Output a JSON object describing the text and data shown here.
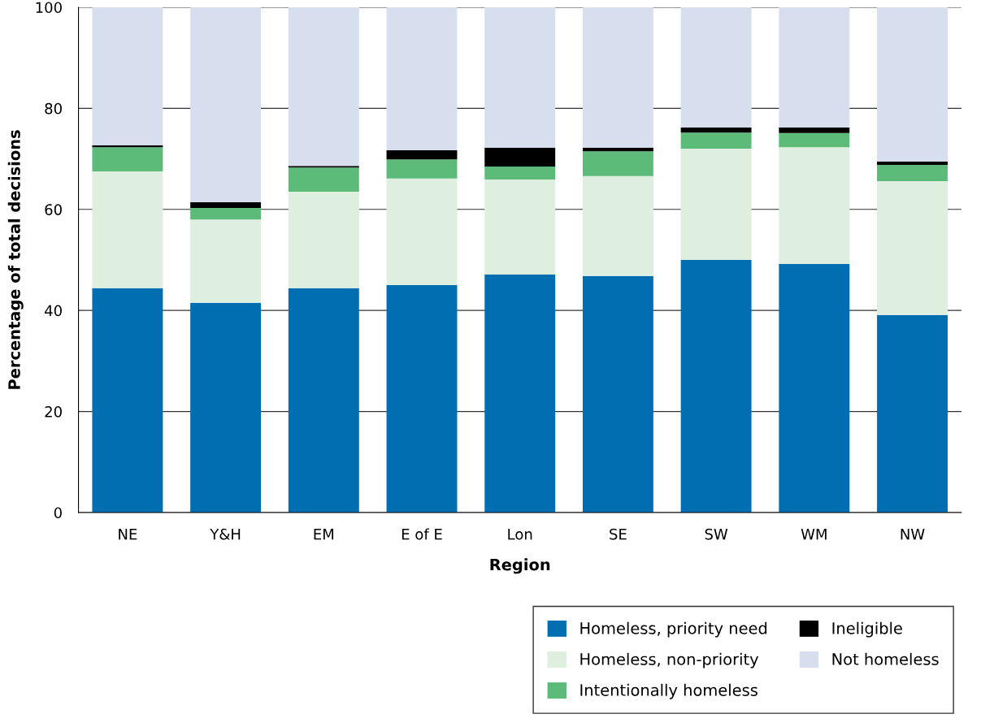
{
  "chart_data": {
    "type": "bar",
    "stacked": true,
    "xlabel": "Region",
    "ylabel": "Percentage of total decisions",
    "categories": [
      "NE",
      "Y&H",
      "EM",
      "E of E",
      "Lon",
      "SE",
      "SW",
      "WM",
      "NW"
    ],
    "series": [
      {
        "name": "Homeless, priority need",
        "color": "#006eb0",
        "values": [
          44.4,
          41.5,
          44.4,
          45.0,
          47.1,
          46.8,
          50.0,
          49.2,
          39.1
        ]
      },
      {
        "name": "Homeless, non-priority",
        "color": "#deeedf",
        "values": [
          23.1,
          16.5,
          19.1,
          21.1,
          18.8,
          19.8,
          22.0,
          23.1,
          26.5
        ]
      },
      {
        "name": "Intentionally homeless",
        "color": "#5dbb7a",
        "values": [
          4.8,
          2.3,
          4.8,
          3.8,
          2.6,
          4.9,
          3.2,
          2.8,
          3.2
        ]
      },
      {
        "name": "Ineligible",
        "color": "#000000",
        "values": [
          0.4,
          1.1,
          0.3,
          1.8,
          3.7,
          0.7,
          1.0,
          1.1,
          0.7
        ]
      },
      {
        "name": "Not homeless",
        "color": "#d7deee",
        "values": [
          27.3,
          38.6,
          31.4,
          28.3,
          27.8,
          27.8,
          23.8,
          23.8,
          30.5
        ]
      }
    ],
    "ylim": [
      0,
      100
    ],
    "yticks": [
      0,
      20,
      40,
      60,
      80,
      100
    ],
    "grid": "y",
    "legend": "bottom right"
  }
}
